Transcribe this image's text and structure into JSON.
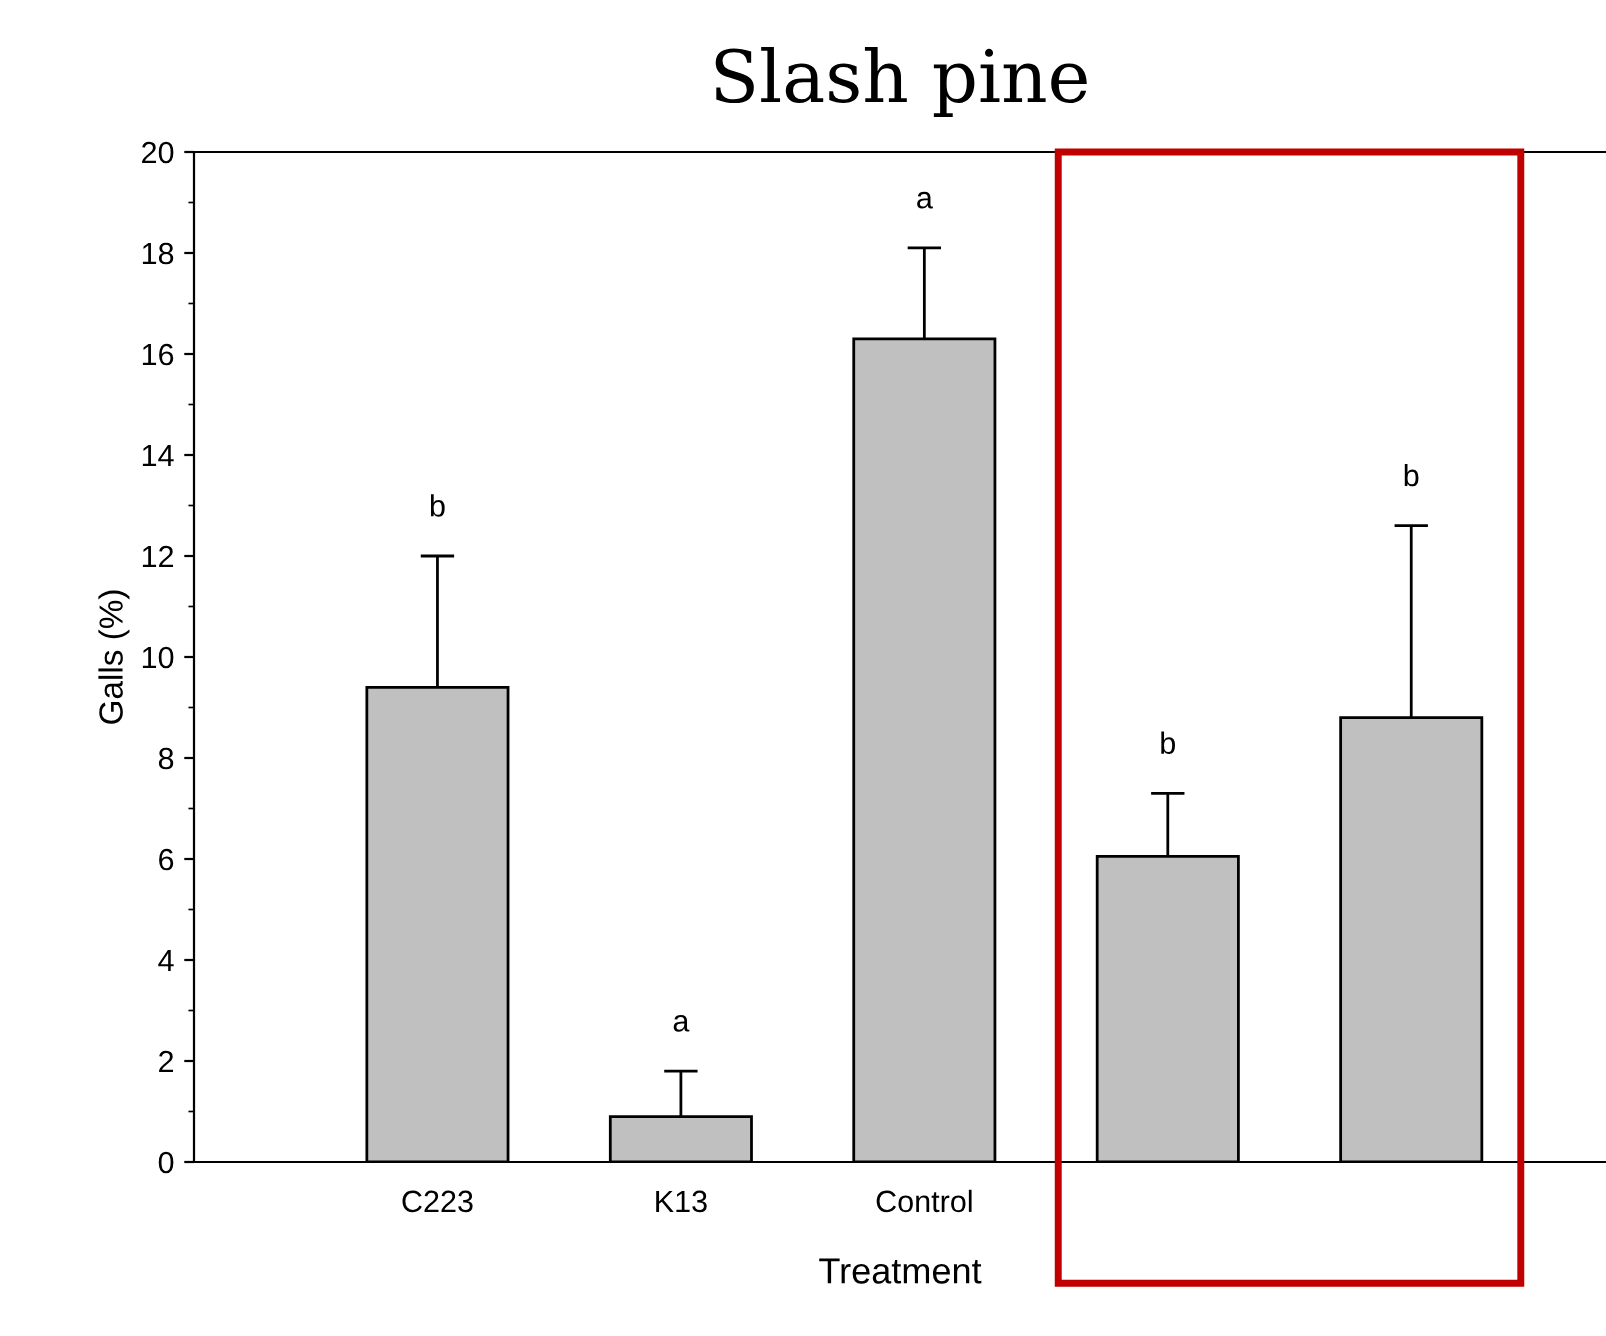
{
  "chart_data": {
    "type": "bar",
    "title": "Slash pine",
    "xlabel": "Treatment",
    "ylabel": "Galls (%)",
    "categories": [
      "C223",
      "K13",
      "Control",
      null,
      null
    ],
    "values": [
      9.4,
      0.9,
      16.3,
      6.05,
      8.8
    ],
    "errors": [
      2.6,
      0.9,
      1.8,
      1.25,
      3.8
    ],
    "color": "#c0c0c0",
    "ylim": [
      0,
      20
    ],
    "yticks": [
      0,
      2,
      4,
      6,
      8,
      10,
      12,
      14,
      16,
      18,
      20
    ],
    "annotations": [
      {
        "text": "b",
        "x": "C223",
        "y": 12.0
      },
      {
        "text": "a",
        "x": "K13",
        "y": 1.8
      },
      {
        "text": "a",
        "x": "Control",
        "y": 18.1
      },
      {
        "text": "b",
        "y": 7.3
      },
      {
        "text": "b",
        "y": 12.6
      }
    ],
    "grid": false
  }
}
